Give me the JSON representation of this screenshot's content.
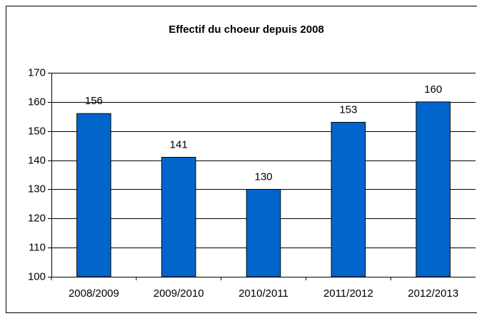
{
  "chart_data": {
    "type": "bar",
    "title": "Effectif du choeur depuis 2008",
    "categories": [
      "2008/2009",
      "2009/2010",
      "2010/2011",
      "2011/2012",
      "2012/2013"
    ],
    "values": [
      156,
      141,
      130,
      153,
      160
    ],
    "color": "#0066cc",
    "ylim": [
      100,
      170
    ],
    "yticks": [
      100,
      110,
      120,
      130,
      140,
      150,
      160,
      170
    ],
    "grid": true
  }
}
